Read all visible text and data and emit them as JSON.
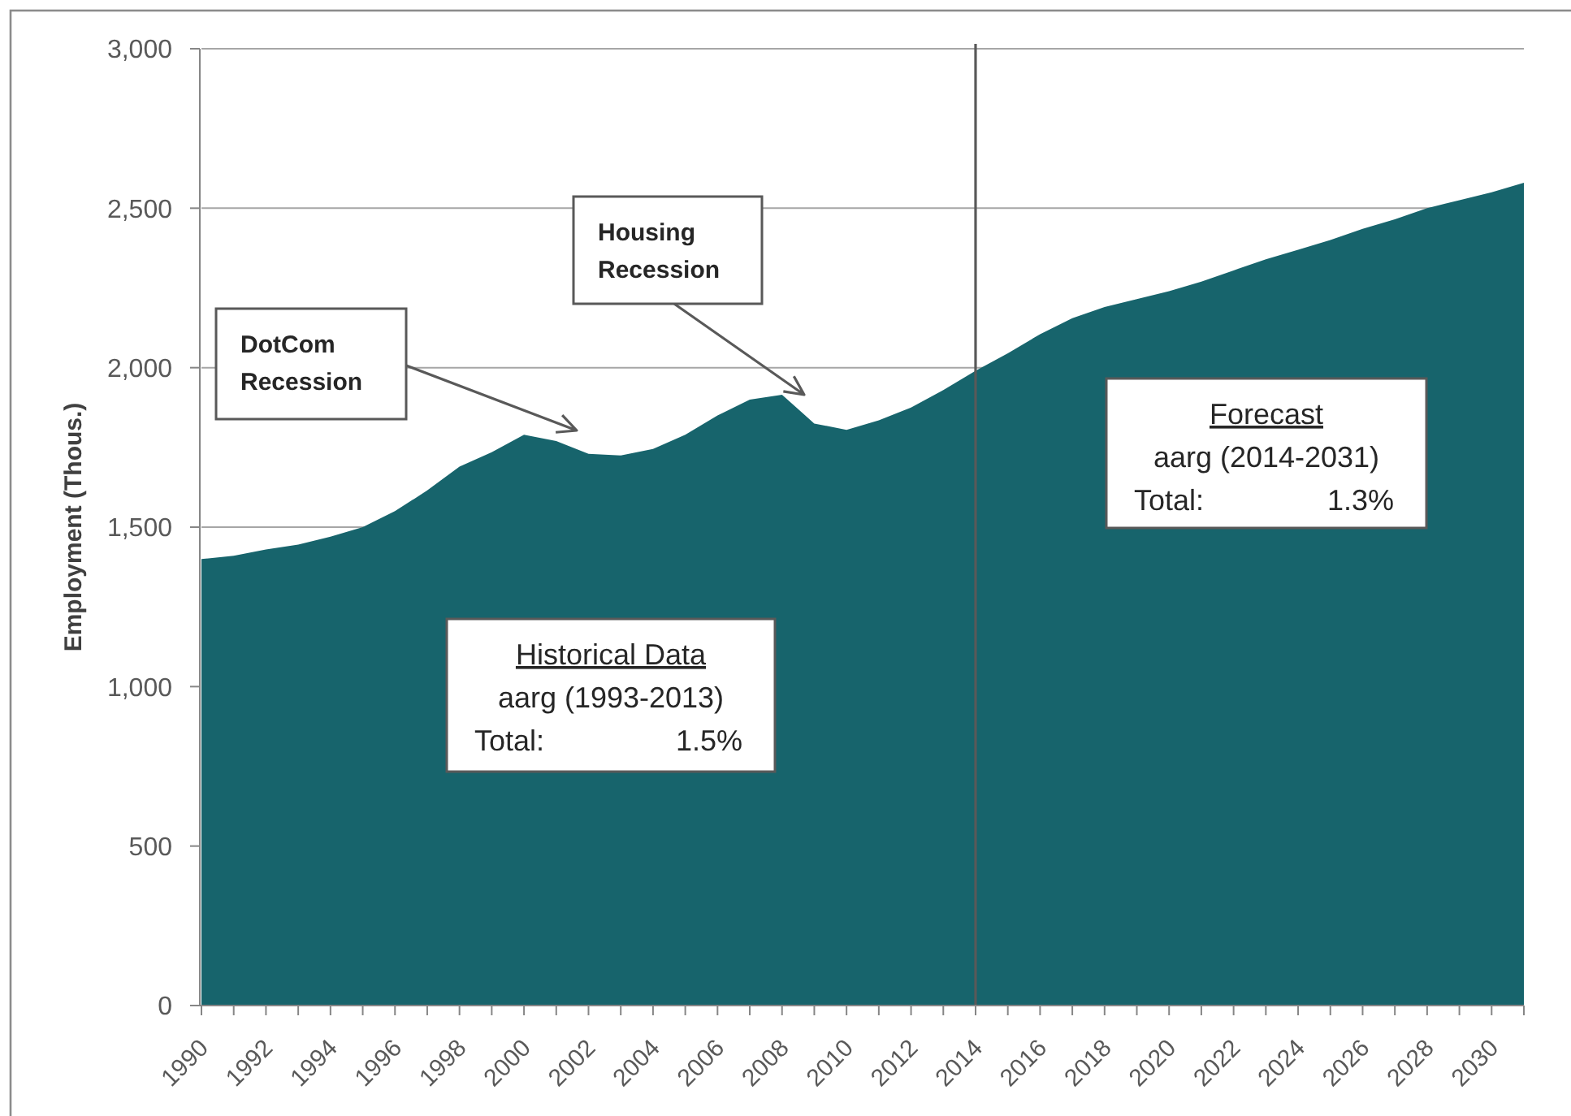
{
  "chart_data": {
    "type": "area",
    "ylabel": "Employment (Thous.)",
    "x": [
      1990,
      1991,
      1992,
      1993,
      1994,
      1995,
      1996,
      1997,
      1998,
      1999,
      2000,
      2001,
      2002,
      2003,
      2004,
      2005,
      2006,
      2007,
      2008,
      2009,
      2010,
      2011,
      2012,
      2013,
      2014,
      2015,
      2016,
      2017,
      2018,
      2019,
      2020,
      2021,
      2022,
      2023,
      2024,
      2025,
      2026,
      2027,
      2028,
      2029,
      2030,
      2031
    ],
    "values": [
      1400,
      1410,
      1430,
      1445,
      1470,
      1500,
      1550,
      1615,
      1690,
      1735,
      1790,
      1770,
      1730,
      1725,
      1745,
      1790,
      1850,
      1900,
      1915,
      1825,
      1805,
      1835,
      1875,
      1930,
      1990,
      2045,
      2105,
      2155,
      2190,
      2215,
      2240,
      2270,
      2305,
      2340,
      2370,
      2400,
      2435,
      2465,
      2500,
      2525,
      2550,
      2580
    ],
    "color": "#17646c",
    "xlim": [
      1990,
      2031
    ],
    "xticks": [
      1990,
      {
        "value": 1991,
        "label": null
      },
      1992,
      {
        "value": 1993,
        "label": null
      },
      1994,
      {
        "value": 1995,
        "label": null
      },
      1996,
      {
        "value": 1997,
        "label": null
      },
      1998,
      {
        "value": 1999,
        "label": null
      },
      2000,
      {
        "value": 2001,
        "label": null
      },
      2002,
      {
        "value": 2003,
        "label": null
      },
      2004,
      {
        "value": 2005,
        "label": null
      },
      2006,
      {
        "value": 2007,
        "label": null
      },
      2008,
      {
        "value": 2009,
        "label": null
      },
      2010,
      {
        "value": 2011,
        "label": null
      },
      2012,
      {
        "value": 2013,
        "label": null
      },
      2014,
      {
        "value": 2015,
        "label": null
      },
      2016,
      {
        "value": 2017,
        "label": null
      },
      2018,
      {
        "value": 2019,
        "label": null
      },
      2020,
      {
        "value": 2021,
        "label": null
      },
      2022,
      {
        "value": 2023,
        "label": null
      },
      2024,
      {
        "value": 2025,
        "label": null
      },
      2026,
      {
        "value": 2027,
        "label": null
      },
      2028,
      {
        "value": 2029,
        "label": null
      },
      2030,
      {
        "value": 2031,
        "label": null
      }
    ],
    "ylim": [
      0,
      3000
    ],
    "yticks": [
      0,
      500,
      {
        "value": 1000,
        "label": "1,000"
      },
      {
        "value": 1500,
        "label": "1,500"
      },
      {
        "value": 2000,
        "label": "2,000"
      },
      {
        "value": 2500,
        "label": "2,500"
      },
      {
        "value": 3000,
        "label": "3,000"
      }
    ],
    "grid": "y",
    "ref_lines": [
      {
        "axis": "x",
        "value": 2014,
        "color": "#595959"
      }
    ],
    "annotations": [
      "DotCom\nRecession",
      "Housing\nRecession",
      "Historical Data\naarg (1993-2013)\nTotal:\t1.5%",
      "Forecast\naarg (2014-2031)\nTotal:\t1.3%"
    ]
  }
}
